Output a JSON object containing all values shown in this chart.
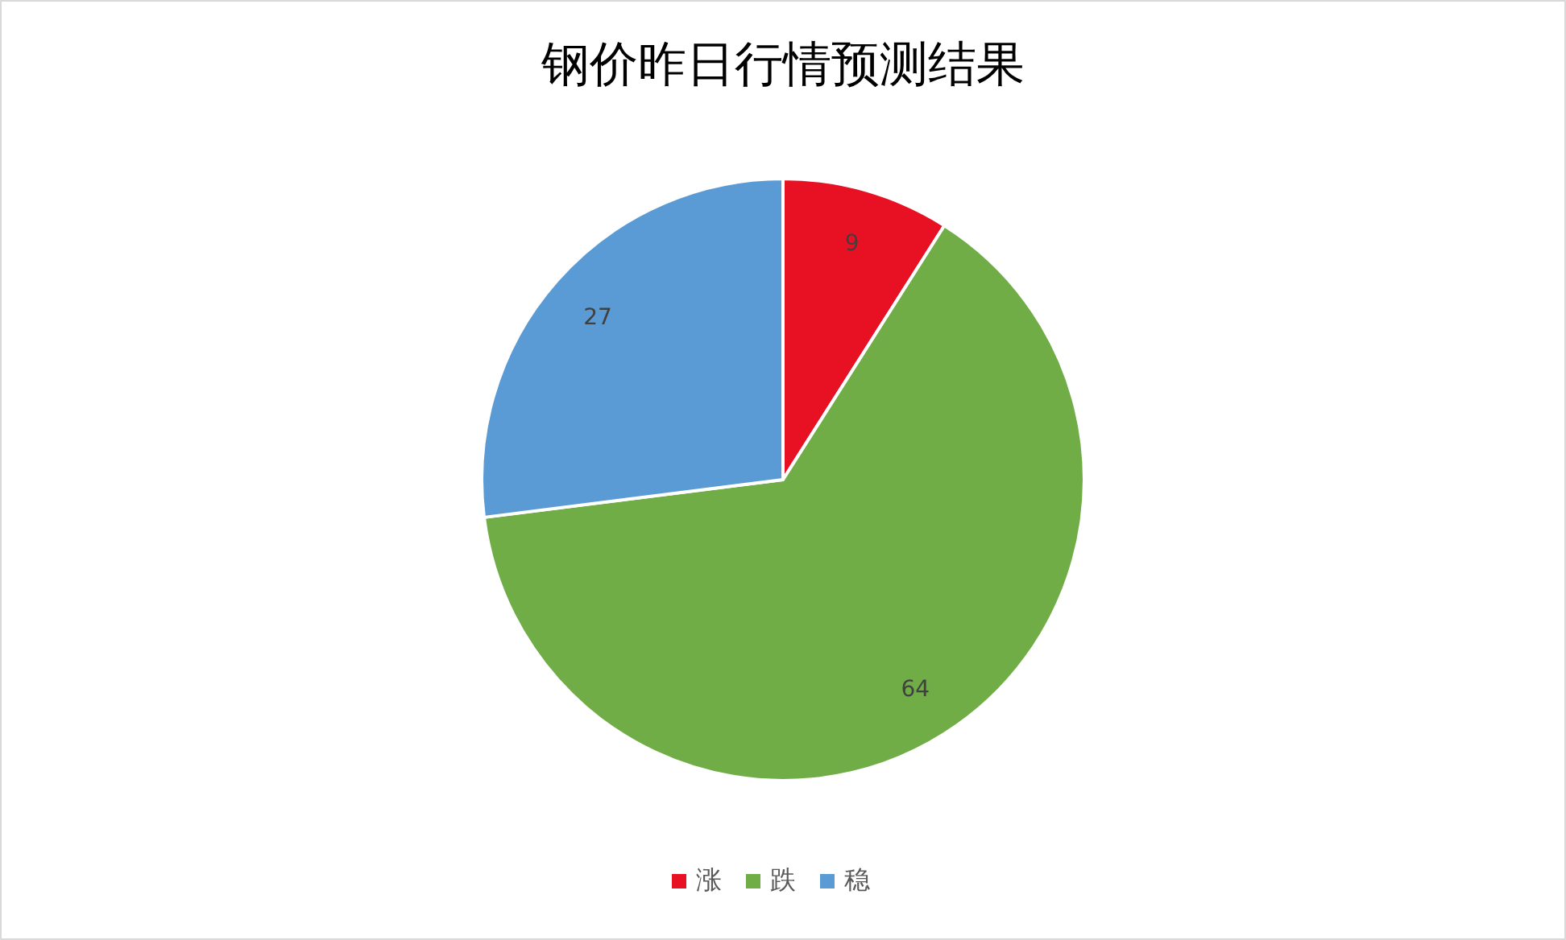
{
  "chart_data": {
    "type": "pie",
    "title": "钢价昨日行情预测结果",
    "categories": [
      "涨",
      "跌",
      "稳"
    ],
    "values": [
      9,
      64,
      27
    ],
    "colors": [
      "#e81123",
      "#70ad47",
      "#5b9bd5"
    ],
    "data_labels": true,
    "legend": "bottom"
  }
}
